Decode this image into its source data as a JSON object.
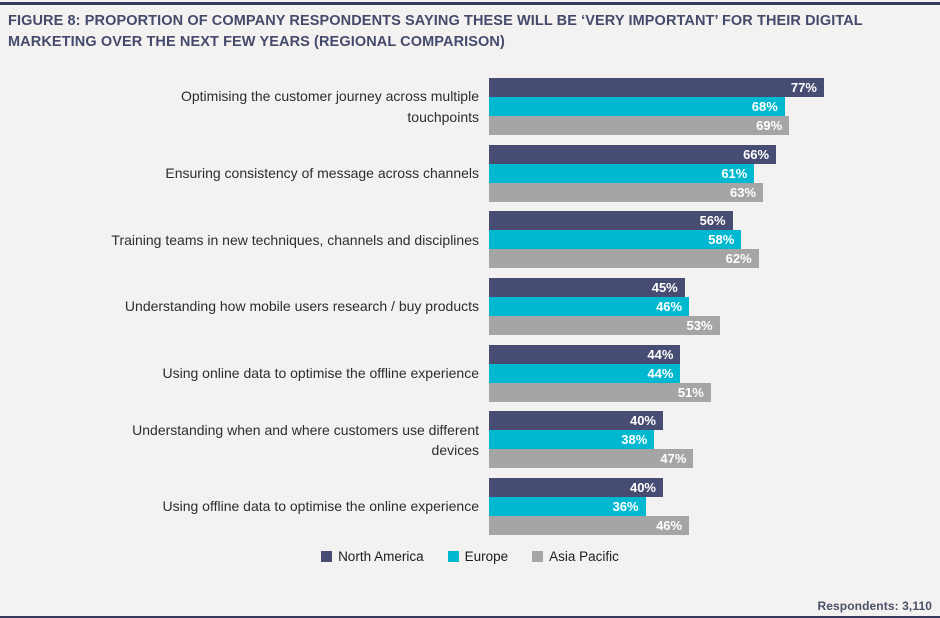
{
  "figure": {
    "title": "FIGURE 8: PROPORTION OF COMPANY RESPONDENTS SAYING THESE WILL BE ‘VERY IMPORTANT’ FOR THEIR DIGITAL MARKETING OVER THE NEXT FEW YEARS (REGIONAL COMPARISON)",
    "title_lines": [
      "FIGURE 8: PROPORTION OF COMPANY RESPONDENTS SAYING THESE WILL BE ‘VERY IMPORTANT’ FOR THEIR DIGITAL",
      "MARKETING OVER THE NEXT FEW YEARS (REGIONAL COMPARISON)"
    ],
    "footnote": "Respondents: 3,110"
  },
  "chart_data": {
    "type": "bar",
    "orientation": "horizontal",
    "title": "FIGURE 8: PROPORTION OF COMPANY RESPONDENTS SAYING THESE WILL BE ‘VERY IMPORTANT’ FOR THEIR DIGITAL MARKETING OVER THE NEXT FEW YEARS (REGIONAL COMPARISON)",
    "categories": [
      "Optimising the customer journey across multiple touchpoints",
      "Ensuring consistency of message across channels",
      "Training teams in new techniques, channels and disciplines",
      "Understanding how mobile users research / buy products",
      "Using online data to optimise the offline experience",
      "Understanding when and where customers use different devices",
      "Using offline data to optimise the online experience"
    ],
    "category_lines": [
      [
        "Optimising the customer journey across multiple",
        "touchpoints"
      ],
      [
        "Ensuring consistency of message across channels"
      ],
      [
        "Training teams in new techniques, channels and disciplines"
      ],
      [
        "Understanding how mobile users research / buy products"
      ],
      [
        "Using online data to optimise the offline experience"
      ],
      [
        "Understanding when and where customers use different",
        "devices"
      ],
      [
        "Using offline data to optimise the online experience"
      ]
    ],
    "series": [
      {
        "name": "North America",
        "color": "#474d72",
        "values": [
          77,
          66,
          56,
          45,
          44,
          40,
          40
        ]
      },
      {
        "name": "Europe",
        "color": "#00b9d1",
        "values": [
          68,
          61,
          58,
          46,
          44,
          38,
          36
        ]
      },
      {
        "name": "Asia Pacific",
        "color": "#a5a5a5",
        "values": [
          69,
          63,
          62,
          53,
          51,
          47,
          46
        ]
      }
    ],
    "value_suffix": "%",
    "xlim": [
      0,
      100
    ],
    "grid": false,
    "legend_position": "bottom",
    "value_labels": "inside-end"
  },
  "colors": {
    "background": "#f3f2f1",
    "rule": "#363b5e",
    "title_text": "#454a6d",
    "category_text": "#2d2d2d",
    "value_text": "#ffffff",
    "legend_text": "#1c1c1c",
    "footnote_text": "#4a5169"
  }
}
